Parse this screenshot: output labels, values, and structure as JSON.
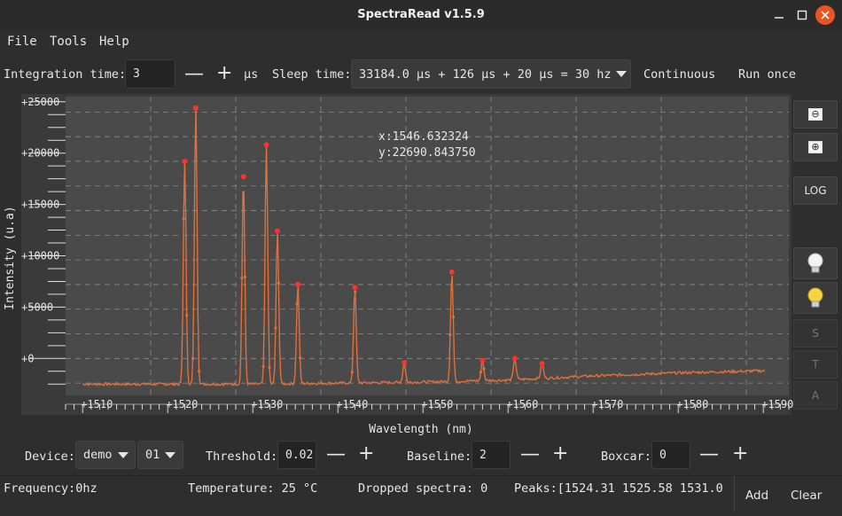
{
  "window": {
    "title": "SpectraRead v1.5.9"
  },
  "menu": [
    "File",
    "Tools",
    "Help"
  ],
  "toolbar": {
    "integration_label": "Integration time:",
    "integration_value": "3",
    "integration_unit": "µs",
    "sleep_label": "Sleep time:",
    "sleep_value": "33184.0 µs + 126 µs + 20 µs = 30 hz",
    "continuous": "Continuous",
    "run_once": "Run once"
  },
  "plot": {
    "cursor_x": "x:1546.632324",
    "cursor_y": "y:22690.843750",
    "accent": "#e0703a",
    "marker": "#ff3030"
  },
  "chart_data": {
    "type": "line",
    "xlabel": "Wavelength (nm)",
    "ylabel": "Intensity (u.a)",
    "x_ticks": [
      "+1510",
      "+1520",
      "+1530",
      "+1540",
      "+1550",
      "+1560",
      "+1570",
      "+1580",
      "+1590"
    ],
    "y_ticks": [
      "+0",
      "+5000",
      "+10000",
      "+15000",
      "+20000",
      "+25000"
    ],
    "xlim": [
      1508,
      1593
    ],
    "ylim": [
      -3600,
      25500
    ],
    "grid": true,
    "baseline": {
      "x": [
        1510,
        1520,
        1530,
        1540,
        1550,
        1560,
        1570,
        1580,
        1590
      ],
      "y": [
        -2500,
        -2500,
        -2500,
        -2400,
        -2300,
        -2100,
        -1700,
        -1400,
        -1200
      ]
    },
    "peaks": [
      {
        "x": 1522.0,
        "y": 19200
      },
      {
        "x": 1523.3,
        "y": 24400
      },
      {
        "x": 1528.9,
        "y": 17700
      },
      {
        "x": 1531.6,
        "y": 20800
      },
      {
        "x": 1532.9,
        "y": 12400
      },
      {
        "x": 1535.3,
        "y": 7200
      },
      {
        "x": 1542.0,
        "y": 6900
      },
      {
        "x": 1547.8,
        "y": -400
      },
      {
        "x": 1553.4,
        "y": 8400
      },
      {
        "x": 1557.0,
        "y": -200
      },
      {
        "x": 1560.8,
        "y": 0
      },
      {
        "x": 1564.0,
        "y": -500
      }
    ]
  },
  "sidebar": {
    "zoom_out": "⊖",
    "zoom_in": "⊕",
    "log": "LOG",
    "s": "S",
    "t": "T",
    "a": "A"
  },
  "bottom": {
    "device_label": "Device:",
    "device_value": "demo",
    "device_index": "01",
    "threshold_label": "Threshold:",
    "threshold_value": "0.02",
    "baseline_label": "Baseline:",
    "baseline_value": "2",
    "boxcar_label": "Boxcar:",
    "boxcar_value": "0"
  },
  "status": {
    "frequency": "Frequency:0hz",
    "temperature": "Temperature: 25 °C",
    "dropped": "Dropped spectra: 0",
    "peaks": "Peaks:[1524.31  1525.58  1531.0",
    "add": "Add",
    "clear": "Clear"
  }
}
